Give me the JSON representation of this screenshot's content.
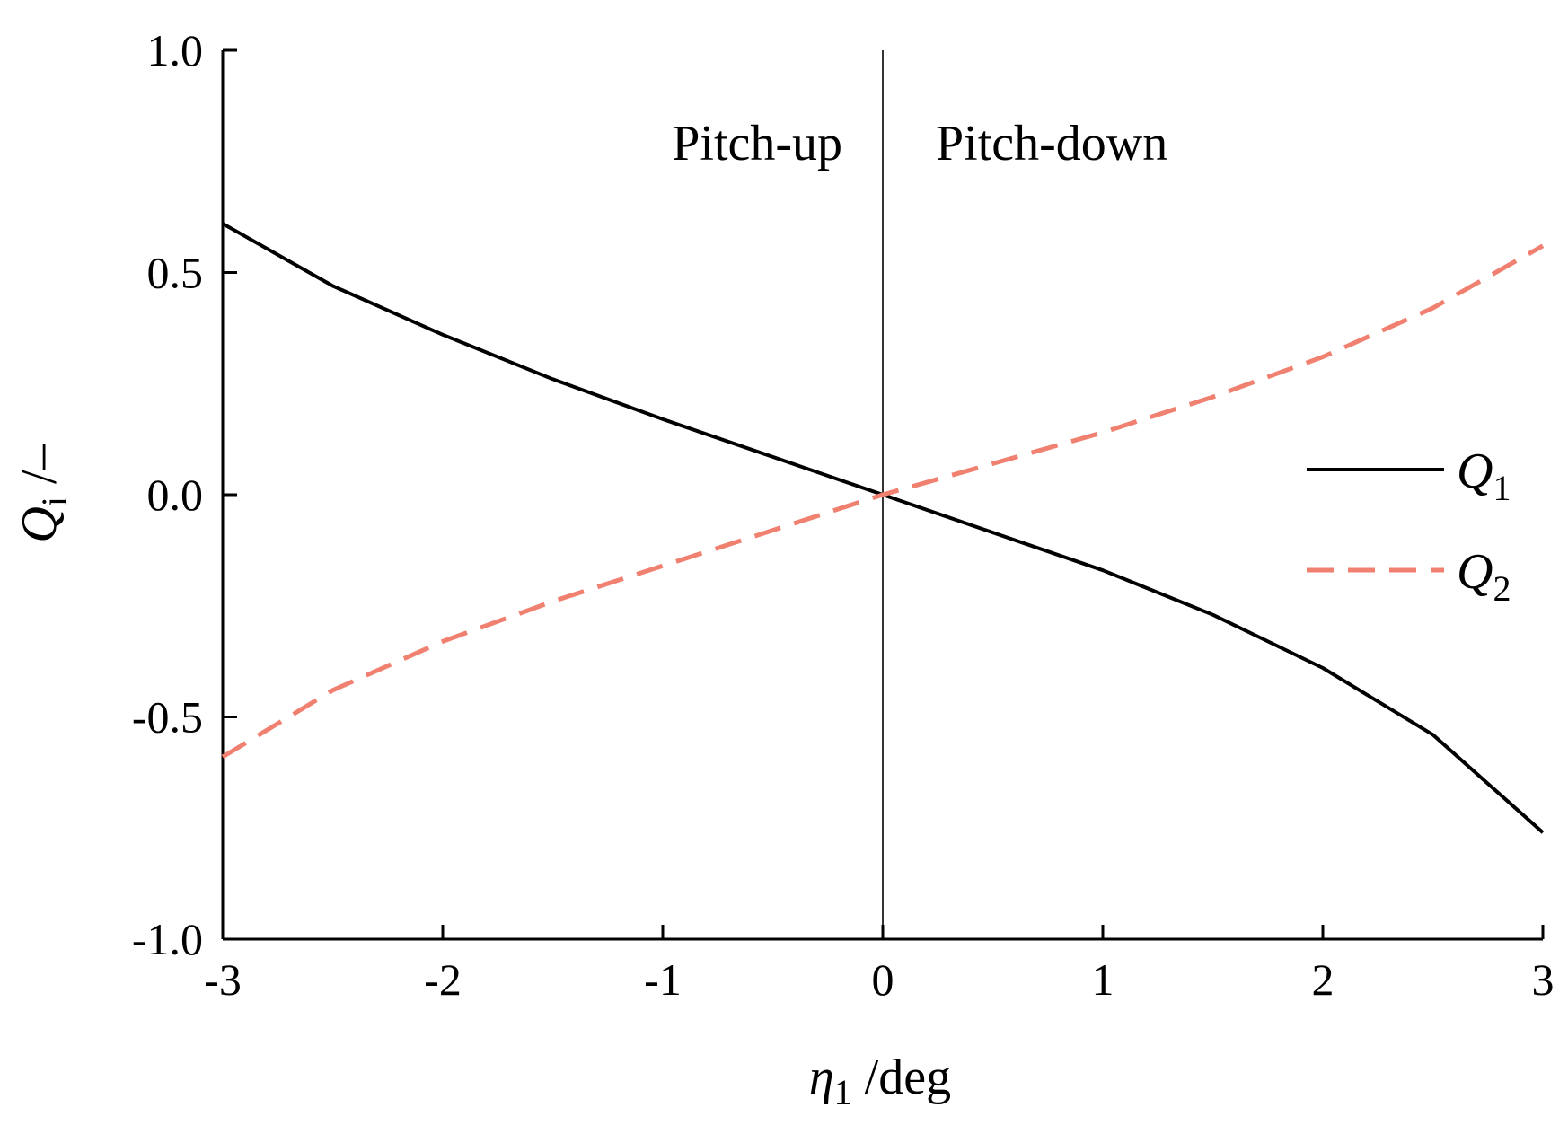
{
  "chart_data": {
    "type": "line",
    "title": "",
    "xlabel": {
      "symbol": "η",
      "subscript": "1",
      "unit": " /deg"
    },
    "ylabel": {
      "symbol": "Q",
      "subscript": "i",
      "unit": " /–"
    },
    "xlim": [
      -3,
      3
    ],
    "ylim": [
      -1.0,
      1.0
    ],
    "x_ticks": [
      -3,
      -2,
      -1,
      0,
      1,
      2,
      3
    ],
    "x_tick_labels": [
      "-3",
      "-2",
      "-1",
      "0",
      "1",
      "2",
      "3"
    ],
    "y_ticks": [
      -1.0,
      -0.5,
      0.0,
      0.5,
      1.0
    ],
    "y_tick_labels": [
      "-1.0",
      "-0.5",
      "0.0",
      "0.5",
      "1.0"
    ],
    "grid": false,
    "legend_position": "right",
    "annotations": {
      "left_region": "Pitch-up",
      "right_region": "Pitch-down",
      "divider_x": 0
    },
    "series": [
      {
        "name_symbol": "Q",
        "name_subscript": "1",
        "style": "solid",
        "color": "#000000",
        "x": [
          -3,
          -2.5,
          -2,
          -1.5,
          -1,
          -0.5,
          0,
          0.5,
          1,
          1.5,
          2,
          2.5,
          3
        ],
        "y": [
          0.61,
          0.47,
          0.36,
          0.26,
          0.17,
          0.085,
          0.0,
          -0.085,
          -0.17,
          -0.27,
          -0.39,
          -0.54,
          -0.76
        ]
      },
      {
        "name_symbol": "Q",
        "name_subscript": "2",
        "style": "dashed",
        "color": "#f08070",
        "x": [
          -3,
          -2.5,
          -2,
          -1.5,
          -1,
          -0.5,
          0,
          0.5,
          1,
          1.5,
          2,
          2.5,
          3
        ],
        "y": [
          -0.59,
          -0.44,
          -0.33,
          -0.24,
          -0.16,
          -0.08,
          0.0,
          0.07,
          0.14,
          0.22,
          0.31,
          0.42,
          0.56
        ]
      }
    ]
  }
}
